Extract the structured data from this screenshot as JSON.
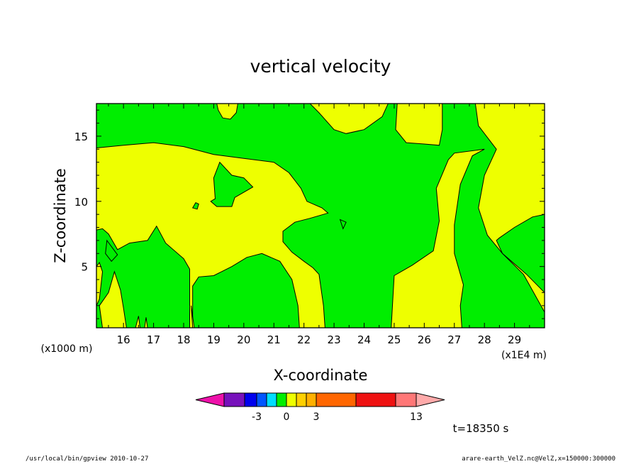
{
  "chart_data": {
    "type": "contour",
    "title": "vertical velocity",
    "xlabel": "X-coordinate",
    "ylabel": "Z-coordinate",
    "x_unit_label": "(x1E4 m)",
    "y_unit_label": "(x1000 m)",
    "xlim": [
      15.1,
      30.0
    ],
    "ylim": [
      0.3,
      17.5
    ],
    "x_ticks": [
      "16",
      "17",
      "18",
      "19",
      "20",
      "21",
      "22",
      "23",
      "24",
      "25",
      "26",
      "27",
      "28",
      "29"
    ],
    "y_ticks": [
      "5",
      "10",
      "15"
    ],
    "fill_colors": {
      "negative_small": "#00ee00",
      "positive_small": "#eeff00"
    },
    "yellow_regions": [
      [
        [
          15.1,
          14.1
        ],
        [
          16.0,
          14.3
        ],
        [
          17.0,
          14.5
        ],
        [
          18.0,
          14.2
        ],
        [
          19.0,
          13.6
        ],
        [
          20.0,
          13.3
        ],
        [
          21.0,
          13.0
        ],
        [
          21.5,
          12.2
        ],
        [
          21.9,
          11.0
        ],
        [
          22.1,
          10.0
        ],
        [
          22.6,
          9.5
        ],
        [
          22.8,
          9.1
        ],
        [
          22.2,
          8.7
        ],
        [
          21.7,
          8.4
        ],
        [
          21.3,
          7.7
        ],
        [
          21.3,
          6.9
        ],
        [
          21.6,
          6.1
        ],
        [
          22.0,
          5.4
        ],
        [
          22.3,
          4.9
        ],
        [
          22.5,
          4.4
        ],
        [
          22.65,
          2.0
        ],
        [
          22.7,
          0.3
        ],
        [
          21.85,
          0.3
        ],
        [
          21.8,
          2.0
        ],
        [
          21.6,
          4.0
        ],
        [
          21.2,
          5.4
        ],
        [
          20.6,
          6.0
        ],
        [
          20.1,
          5.7
        ],
        [
          19.6,
          5.0
        ],
        [
          19.0,
          4.3
        ],
        [
          18.5,
          4.2
        ],
        [
          18.3,
          3.5
        ],
        [
          18.3,
          0.3
        ],
        [
          18.2,
          0.3
        ],
        [
          18.2,
          3.0
        ],
        [
          18.2,
          4.8
        ],
        [
          18.0,
          5.6
        ],
        [
          17.4,
          6.8
        ],
        [
          17.1,
          8.1
        ],
        [
          16.8,
          7.0
        ],
        [
          16.2,
          6.8
        ],
        [
          15.8,
          6.3
        ],
        [
          15.5,
          7.5
        ],
        [
          15.3,
          7.9
        ],
        [
          15.1,
          7.8
        ]
      ],
      [
        [
          22.2,
          17.5
        ],
        [
          22.5,
          16.8
        ],
        [
          23.0,
          15.5
        ],
        [
          23.4,
          15.2
        ],
        [
          24.0,
          15.5
        ],
        [
          24.6,
          16.5
        ],
        [
          24.8,
          17.5
        ]
      ],
      [
        [
          19.1,
          17.5
        ],
        [
          19.15,
          17.0
        ],
        [
          19.3,
          16.4
        ],
        [
          19.55,
          16.3
        ],
        [
          19.75,
          16.8
        ],
        [
          19.8,
          17.5
        ]
      ],
      [
        [
          25.1,
          17.5
        ],
        [
          25.05,
          15.5
        ],
        [
          25.4,
          14.5
        ],
        [
          26.0,
          14.4
        ],
        [
          26.5,
          14.3
        ],
        [
          26.6,
          15.5
        ],
        [
          26.6,
          17.5
        ]
      ],
      [
        [
          27.7,
          17.5
        ],
        [
          27.8,
          15.8
        ],
        [
          28.4,
          14.0
        ],
        [
          28.0,
          12.0
        ],
        [
          27.8,
          9.5
        ],
        [
          28.1,
          7.4
        ],
        [
          28.6,
          6.0
        ],
        [
          29.3,
          4.4
        ],
        [
          30.0,
          1.5
        ],
        [
          30.0,
          0.3
        ],
        [
          27.25,
          0.3
        ],
        [
          27.2,
          2.0
        ],
        [
          27.3,
          3.6
        ],
        [
          27.0,
          6.0
        ],
        [
          27.0,
          8.2
        ],
        [
          27.2,
          11.3
        ],
        [
          27.6,
          13.5
        ],
        [
          28.0,
          14.0
        ],
        [
          27.0,
          13.7
        ],
        [
          26.8,
          13.2
        ],
        [
          26.4,
          11.0
        ],
        [
          26.5,
          8.5
        ],
        [
          26.3,
          6.2
        ],
        [
          25.6,
          5.1
        ],
        [
          25.0,
          4.3
        ],
        [
          24.9,
          0.3
        ],
        [
          30.0,
          0.3
        ],
        [
          30.0,
          17.5
        ]
      ],
      [
        [
          15.1,
          2.0
        ],
        [
          15.1,
          5.0
        ],
        [
          15.2,
          5.3
        ],
        [
          15.3,
          4.6
        ],
        [
          15.2,
          2.5
        ]
      ],
      [
        [
          15.3,
          0.3
        ],
        [
          15.2,
          2.0
        ],
        [
          15.5,
          3.0
        ],
        [
          15.7,
          4.6
        ],
        [
          15.9,
          3.2
        ],
        [
          16.0,
          1.8
        ],
        [
          16.1,
          0.3
        ]
      ],
      [
        [
          16.4,
          0.3
        ],
        [
          16.5,
          1.2
        ],
        [
          16.55,
          0.3
        ]
      ],
      [
        [
          16.7,
          0.3
        ],
        [
          16.75,
          1.1
        ],
        [
          16.8,
          0.3
        ]
      ],
      [
        [
          18.3,
          0.3
        ],
        [
          18.25,
          2.0
        ],
        [
          18.35,
          0.3
        ]
      ]
    ],
    "green_regions": [
      [
        [
          19.05,
          10.2
        ],
        [
          19.0,
          11.8
        ],
        [
          19.2,
          13.0
        ],
        [
          19.6,
          12.0
        ],
        [
          20.0,
          11.8
        ],
        [
          20.3,
          11.1
        ],
        [
          19.7,
          10.3
        ],
        [
          19.6,
          9.6
        ],
        [
          19.1,
          9.6
        ],
        [
          18.9,
          10.0
        ]
      ],
      [
        [
          28.5,
          7.2
        ],
        [
          29.0,
          8.0
        ],
        [
          29.6,
          8.8
        ],
        [
          30.0,
          9.0
        ],
        [
          30.0,
          3.0
        ],
        [
          29.4,
          4.4
        ],
        [
          28.6,
          6.0
        ],
        [
          28.4,
          7.0
        ]
      ],
      [
        [
          18.3,
          9.5
        ],
        [
          18.4,
          9.9
        ],
        [
          18.5,
          9.8
        ],
        [
          18.45,
          9.4
        ]
      ],
      [
        [
          23.2,
          8.6
        ],
        [
          23.3,
          7.9
        ],
        [
          23.4,
          8.4
        ]
      ],
      [
        [
          15.45,
          7.0
        ],
        [
          15.8,
          5.9
        ],
        [
          15.6,
          5.4
        ],
        [
          15.4,
          6.0
        ]
      ]
    ]
  },
  "colorbar": {
    "colors": [
      "#ee11aa",
      "#7711bb",
      "#0000ee",
      "#0055ff",
      "#00ddff",
      "#00ee00",
      "#eeff00",
      "#ffd000",
      "#ffb000",
      "#ff6600",
      "#ee1111",
      "#ff7777",
      "#ffaaaa"
    ],
    "labels": [
      "-3",
      "0",
      "3",
      "13"
    ]
  },
  "time_label": "t=18350 s",
  "footer": {
    "left": "/usr/local/bin/gpview  2010-10-27",
    "right": "arare-earth_VelZ.nc@VelZ,x=150000:300000"
  }
}
